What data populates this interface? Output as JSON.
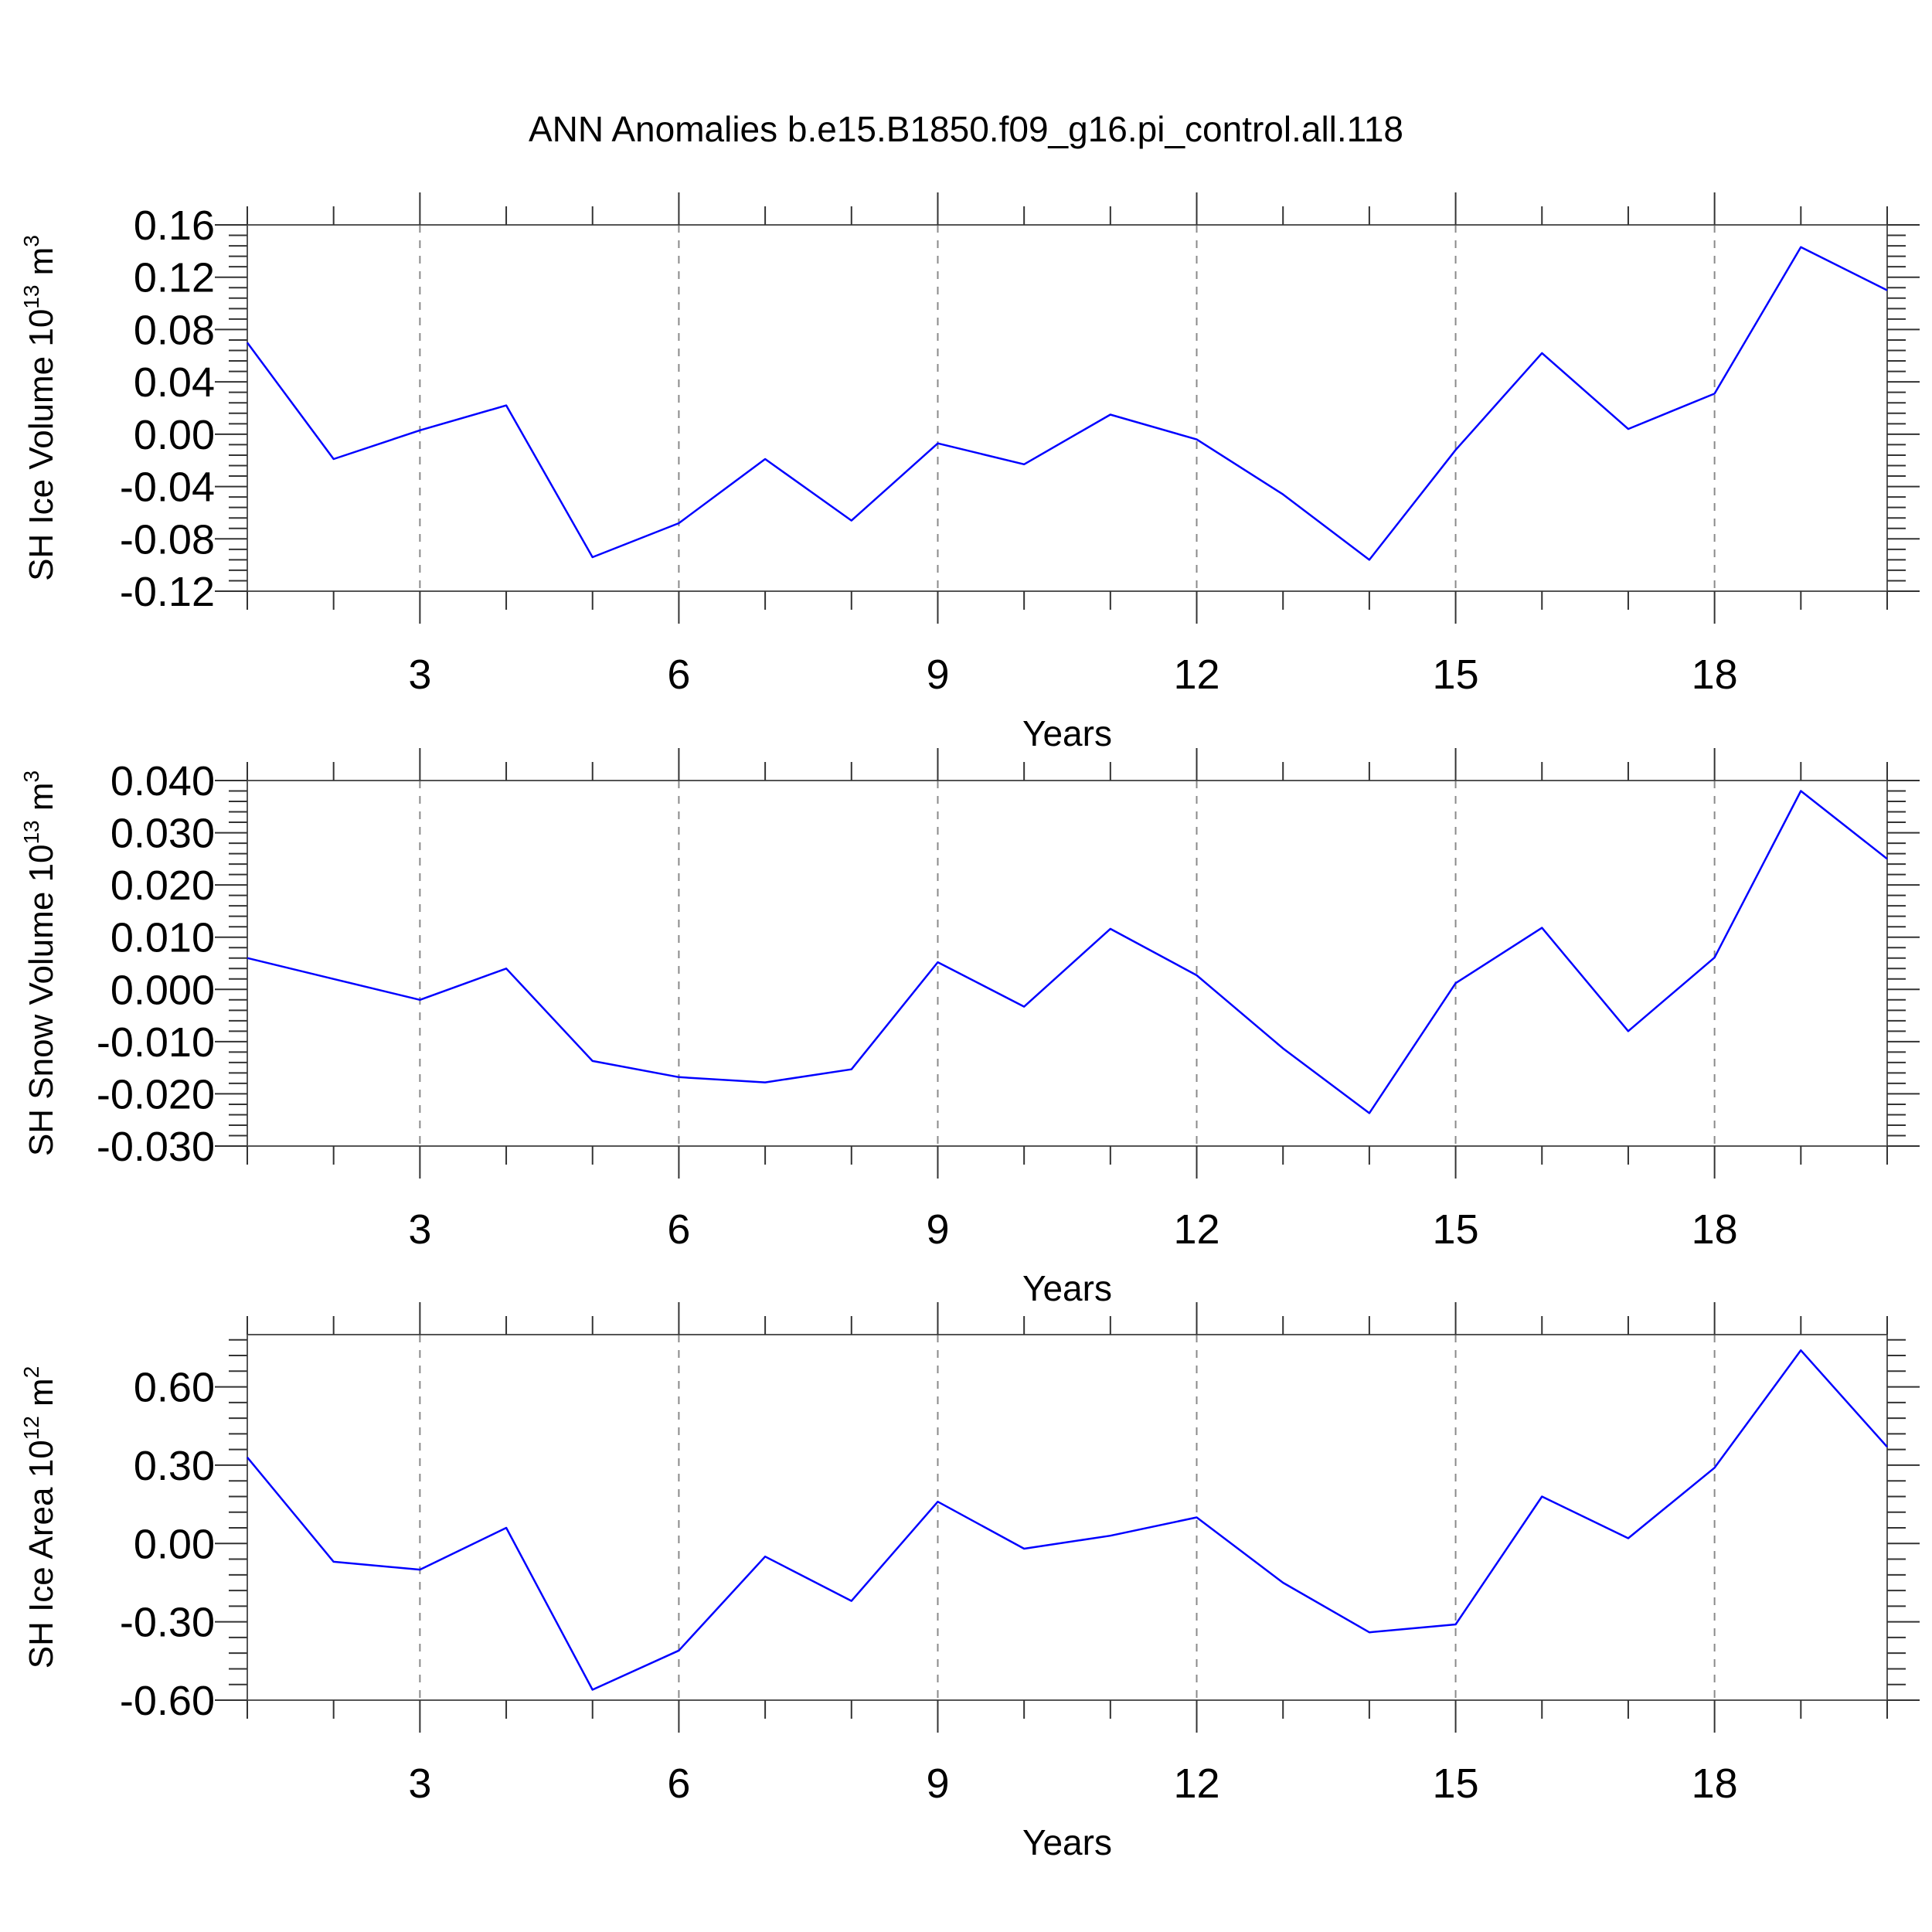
{
  "title": "ANN Anomalies b.e15.B1850.f09_g16.pi_control.all.118",
  "chart_data": [
    {
      "type": "line",
      "ylabel": {
        "text": "SH Ice Volume 10",
        "sup1": "13",
        "mid": " m",
        "sup2": "3"
      },
      "xlabel": "Years",
      "xlim": [
        1,
        20
      ],
      "ylim": [
        -0.12,
        0.16
      ],
      "xticks": [
        3,
        6,
        9,
        12,
        15,
        18
      ],
      "xtick_labels": [
        "3",
        "6",
        "9",
        "12",
        "15",
        "18"
      ],
      "yticks": [
        -0.12,
        -0.08,
        -0.04,
        0.0,
        0.04,
        0.08,
        0.12,
        0.16
      ],
      "ytick_labels": [
        "-0.12",
        "-0.08",
        "-0.04",
        "0.00",
        "0.04",
        "0.08",
        "0.12",
        "0.16"
      ],
      "grid": "vertical dashed at major ticks",
      "line_color": "#0000ff",
      "x": [
        1,
        2,
        3,
        4,
        5,
        6,
        7,
        8,
        9,
        10,
        11,
        12,
        13,
        14,
        15,
        16,
        17,
        18,
        19,
        20
      ],
      "values": [
        0.07,
        -0.019,
        0.003,
        0.022,
        -0.094,
        -0.068,
        -0.019,
        -0.066,
        -0.007,
        -0.023,
        0.015,
        -0.004,
        -0.046,
        -0.096,
        -0.012,
        0.062,
        0.004,
        0.031,
        0.143,
        0.11
      ]
    },
    {
      "type": "line",
      "ylabel": {
        "text": "SH Snow Volume 10",
        "sup1": "13",
        "mid": " m",
        "sup2": "3"
      },
      "xlabel": "Years",
      "xlim": [
        1,
        20
      ],
      "ylim": [
        -0.03,
        0.04
      ],
      "xticks": [
        3,
        6,
        9,
        12,
        15,
        18
      ],
      "xtick_labels": [
        "3",
        "6",
        "9",
        "12",
        "15",
        "18"
      ],
      "yticks": [
        -0.03,
        -0.02,
        -0.01,
        0.0,
        0.01,
        0.02,
        0.03,
        0.04
      ],
      "ytick_labels": [
        "-0.030",
        "-0.020",
        "-0.010",
        "0.000",
        "0.010",
        "0.020",
        "0.030",
        "0.040"
      ],
      "grid": "vertical dashed at major ticks",
      "line_color": "#0000ff",
      "x": [
        1,
        2,
        3,
        4,
        5,
        6,
        7,
        8,
        9,
        10,
        11,
        12,
        13,
        14,
        15,
        16,
        17,
        18,
        19,
        20
      ],
      "values": [
        0.006,
        0.002,
        -0.002,
        0.004,
        -0.0137,
        -0.0168,
        -0.0178,
        -0.0153,
        0.0052,
        -0.0033,
        0.0116,
        0.0027,
        -0.0113,
        -0.0237,
        0.0012,
        0.0118,
        -0.008,
        0.0061,
        0.038,
        0.025
      ]
    },
    {
      "type": "line",
      "ylabel": {
        "text": "SH Ice Area 10",
        "sup1": "12",
        "mid": " m",
        "sup2": "2"
      },
      "xlabel": "Years",
      "xlim": [
        1,
        20
      ],
      "ylim": [
        -0.6,
        0.8
      ],
      "xticks": [
        3,
        6,
        9,
        12,
        15,
        18
      ],
      "xtick_labels": [
        "3",
        "6",
        "9",
        "12",
        "15",
        "18"
      ],
      "yticks": [
        -0.6,
        -0.3,
        0.0,
        0.3,
        0.6
      ],
      "ytick_labels": [
        "-0.60",
        "-0.30",
        "0.00",
        "0.30",
        "0.60"
      ],
      "grid": "vertical dashed at major ticks",
      "line_color": "#0000ff",
      "x": [
        1,
        2,
        3,
        4,
        5,
        6,
        7,
        8,
        9,
        10,
        11,
        12,
        13,
        14,
        15,
        16,
        17,
        18,
        19,
        20
      ],
      "values": [
        0.33,
        -0.07,
        -0.1,
        0.06,
        -0.56,
        -0.41,
        -0.05,
        -0.22,
        0.16,
        -0.02,
        0.03,
        0.1,
        -0.15,
        -0.34,
        -0.31,
        0.18,
        0.02,
        0.29,
        0.74,
        0.37
      ]
    }
  ]
}
